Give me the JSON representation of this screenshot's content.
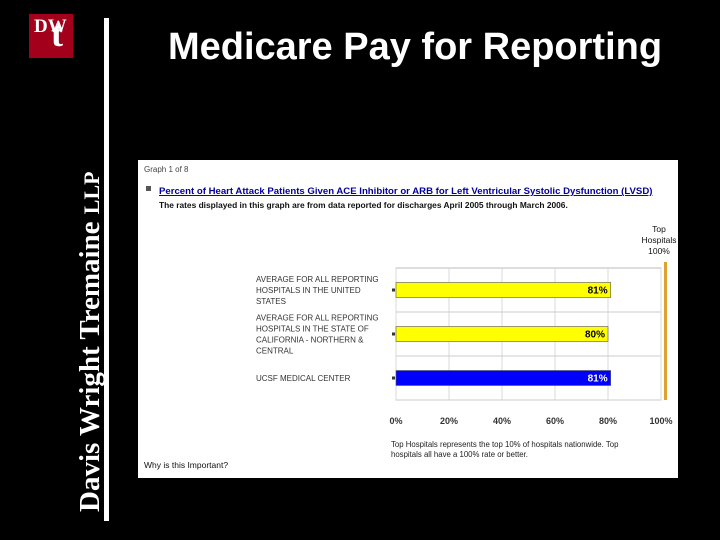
{
  "firm": {
    "name": "Davis Wright Tremaine",
    "suffix": "LLP",
    "logo_top": "DW",
    "logo_mark": "t"
  },
  "slide": {
    "title": "Medicare Pay for Reporting"
  },
  "graph": {
    "page_label": "Graph 1 of 8",
    "title": "Percent of Heart Attack Patients Given ACE Inhibitor or ARB for Left Ventricular Systolic Dysfunction (LVSD)",
    "subtitle": "The rates displayed in this graph are from data reported for discharges April 2005 through March 2006.",
    "top_label": [
      "Top",
      "Hospitals",
      "100%"
    ],
    "footnote": [
      "Top Hospitals represents the top 10% of hospitals nationwide. Top",
      "hospitals all have a 100% rate or better."
    ],
    "why_link": "Why is this Important?"
  },
  "chart_data": {
    "type": "bar",
    "orientation": "horizontal",
    "categories": [
      [
        "AVERAGE FOR ALL REPORTING",
        "HOSPITALS IN THE UNITED",
        "STATES"
      ],
      [
        "AVERAGE FOR ALL REPORTING",
        "HOSPITALS IN THE STATE OF",
        "CALIFORNIA - NORTHERN &",
        "CENTRAL"
      ],
      [
        "UCSF MEDICAL CENTER"
      ]
    ],
    "values": [
      81,
      80,
      81
    ],
    "value_labels": [
      "81%",
      "80%",
      "81%"
    ],
    "bar_colors": [
      "#ffff00",
      "#ffff00",
      "#0000ff"
    ],
    "value_label_colors": [
      "#000000",
      "#000000",
      "#ffffff"
    ],
    "xlim": [
      0,
      100
    ],
    "xticks": [
      "0%",
      "20%",
      "40%",
      "60%",
      "80%",
      "100%"
    ],
    "reference_value": 100,
    "reference_color": "#e0a030",
    "grid": true
  },
  "colors": {
    "background": "#000000",
    "brand_red": "#a3001b",
    "link_blue": "#000099"
  }
}
